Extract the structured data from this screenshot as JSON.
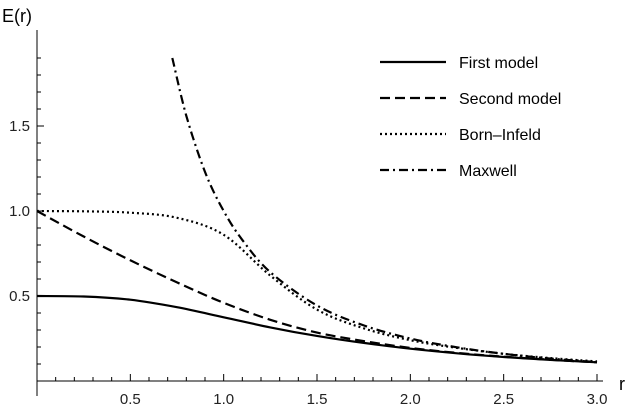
{
  "chart_data": {
    "type": "line",
    "title": "",
    "xlabel": "r",
    "ylabel": "E(r)",
    "xlim": [
      0,
      3.0
    ],
    "ylim": [
      0,
      1.9
    ],
    "xticks": [
      0.5,
      1.0,
      1.5,
      2.0,
      2.5,
      3.0
    ],
    "xtick_labels": [
      "0.5",
      "1.0",
      "1.5",
      "2.0",
      "2.5",
      "3.0"
    ],
    "yticks": [
      0.5,
      1.0,
      1.5
    ],
    "ytick_labels": [
      "0.5",
      "1.0",
      "1.5"
    ],
    "grid": false,
    "legend_position": "top-right",
    "series": [
      {
        "name": "First model",
        "dash": "solid",
        "x": [
          0,
          0.25,
          0.5,
          0.75,
          1.0,
          1.25,
          1.5,
          1.75,
          2.0,
          2.25,
          2.5,
          2.75,
          3.0
        ],
        "values": [
          0.5,
          0.497,
          0.478,
          0.434,
          0.375,
          0.315,
          0.265,
          0.224,
          0.19,
          0.163,
          0.141,
          0.124,
          0.11
        ]
      },
      {
        "name": "Second model",
        "dash": "dashed",
        "x": [
          0,
          0.25,
          0.5,
          0.75,
          1.0,
          1.25,
          1.5,
          1.75,
          2.0,
          2.25,
          2.5,
          2.75,
          3.0
        ],
        "values": [
          1.0,
          0.85,
          0.71,
          0.58,
          0.46,
          0.36,
          0.285,
          0.235,
          0.195,
          0.165,
          0.143,
          0.125,
          0.11
        ]
      },
      {
        "name": "Born–Infeld",
        "dash": "dotted",
        "x": [
          0,
          0.25,
          0.5,
          0.75,
          1.0,
          1.25,
          1.5,
          1.75,
          2.0,
          2.25,
          2.5,
          2.75,
          3.0
        ],
        "values": [
          1.0,
          0.998,
          0.99,
          0.96,
          0.86,
          0.62,
          0.42,
          0.31,
          0.24,
          0.195,
          0.16,
          0.135,
          0.115
        ]
      },
      {
        "name": "Maxwell",
        "dash": "dashdot",
        "x": [
          0.725,
          0.8,
          0.9,
          1.0,
          1.1,
          1.25,
          1.5,
          1.75,
          2.0,
          2.25,
          2.5,
          2.75,
          3.0
        ],
        "values": [
          1.9,
          1.56,
          1.23,
          1.0,
          0.83,
          0.64,
          0.444,
          0.327,
          0.25,
          0.198,
          0.16,
          0.132,
          0.111
        ]
      }
    ]
  }
}
